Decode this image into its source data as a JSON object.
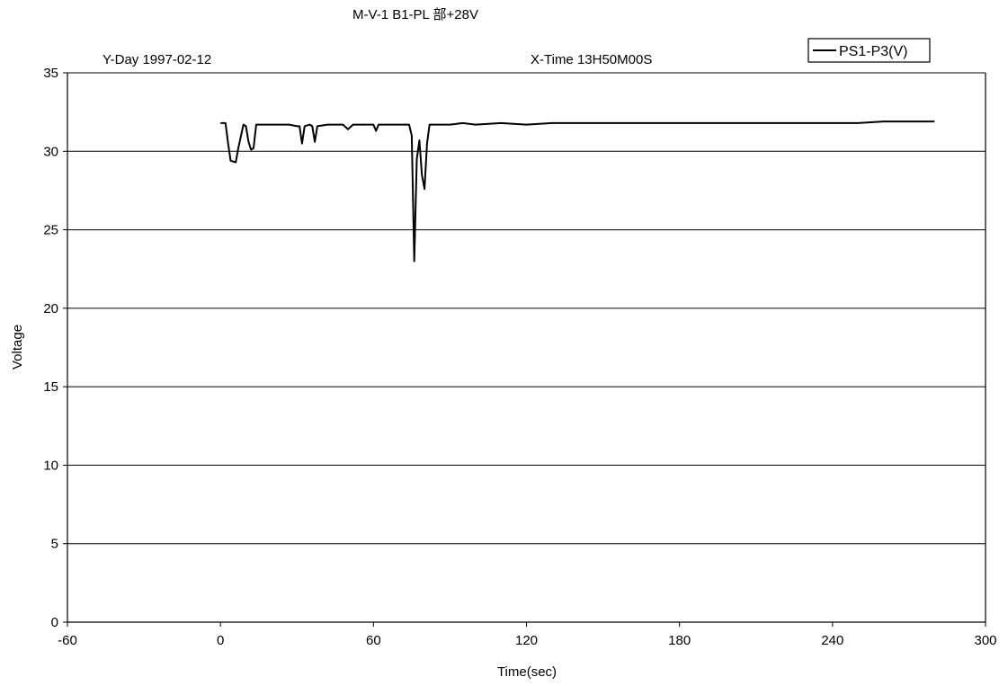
{
  "chart_data": {
    "type": "line",
    "title": "M-V-1 B1-PL 部+28V",
    "header_left": "Y-Day  1997-02-12",
    "header_right": "X-Time  13H50M00S",
    "xlabel": "Time(sec)",
    "ylabel": "Voltage",
    "xlim": [
      -60,
      300
    ],
    "ylim": [
      0,
      35
    ],
    "x_ticks": [
      -60,
      0,
      60,
      120,
      180,
      240,
      300
    ],
    "y_ticks": [
      0,
      5,
      10,
      15,
      20,
      25,
      30,
      35
    ],
    "grid": "horizontal",
    "legend": "top-right",
    "series": [
      {
        "name": "PS1-P3(V)",
        "points": [
          [
            0,
            31.8
          ],
          [
            2,
            31.8
          ],
          [
            3,
            30.5
          ],
          [
            4,
            29.4
          ],
          [
            6,
            29.3
          ],
          [
            7,
            30.2
          ],
          [
            9,
            31.7
          ],
          [
            10,
            31.6
          ],
          [
            11,
            30.6
          ],
          [
            12,
            30.1
          ],
          [
            13,
            30.2
          ],
          [
            14,
            31.7
          ],
          [
            27,
            31.7
          ],
          [
            30,
            31.6
          ],
          [
            31,
            31.6
          ],
          [
            32,
            30.5
          ],
          [
            33,
            31.6
          ],
          [
            35,
            31.7
          ],
          [
            36,
            31.6
          ],
          [
            37,
            30.6
          ],
          [
            38,
            31.6
          ],
          [
            42,
            31.7
          ],
          [
            48,
            31.7
          ],
          [
            50,
            31.4
          ],
          [
            52,
            31.7
          ],
          [
            58,
            31.7
          ],
          [
            60,
            31.7
          ],
          [
            61,
            31.3
          ],
          [
            62,
            31.7
          ],
          [
            74,
            31.7
          ],
          [
            75,
            31.0
          ],
          [
            76,
            23.0
          ],
          [
            77,
            29.5
          ],
          [
            78,
            30.7
          ],
          [
            79,
            28.5
          ],
          [
            80,
            27.6
          ],
          [
            81,
            30.5
          ],
          [
            82,
            31.7
          ],
          [
            90,
            31.7
          ],
          [
            95,
            31.8
          ],
          [
            100,
            31.7
          ],
          [
            110,
            31.8
          ],
          [
            120,
            31.7
          ],
          [
            130,
            31.8
          ],
          [
            140,
            31.8
          ],
          [
            150,
            31.8
          ],
          [
            160,
            31.8
          ],
          [
            170,
            31.8
          ],
          [
            180,
            31.8
          ],
          [
            190,
            31.8
          ],
          [
            200,
            31.8
          ],
          [
            210,
            31.8
          ],
          [
            220,
            31.8
          ],
          [
            230,
            31.8
          ],
          [
            240,
            31.8
          ],
          [
            250,
            31.8
          ],
          [
            260,
            31.9
          ],
          [
            270,
            31.9
          ],
          [
            280,
            31.9
          ]
        ]
      }
    ]
  }
}
